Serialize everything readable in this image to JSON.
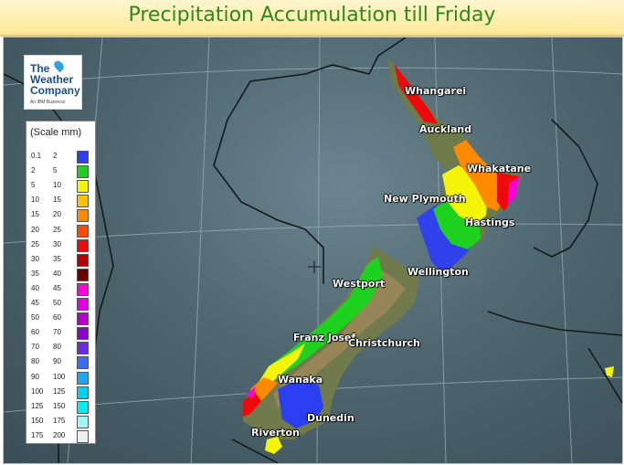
{
  "title": "Precipitation Accumulation till Friday",
  "logo": {
    "line1": "The",
    "line2": "Weather",
    "line3": "Company",
    "subtitle": "An IBM Business"
  },
  "legend": {
    "title": "(Scale mm)",
    "rows": [
      {
        "from": "0.1",
        "to": "2",
        "color": "#2b3ef2"
      },
      {
        "from": "2",
        "to": "5",
        "color": "#1fd11f"
      },
      {
        "from": "5",
        "to": "10",
        "color": "#f5f50a"
      },
      {
        "from": "10",
        "to": "15",
        "color": "#ffc000"
      },
      {
        "from": "15",
        "to": "20",
        "color": "#ff8a00"
      },
      {
        "from": "20",
        "to": "25",
        "color": "#ff4a00"
      },
      {
        "from": "25",
        "to": "30",
        "color": "#ee0a0a"
      },
      {
        "from": "30",
        "to": "35",
        "color": "#b40000"
      },
      {
        "from": "35",
        "to": "40",
        "color": "#6b0000"
      },
      {
        "from": "40",
        "to": "45",
        "color": "#ff00dc"
      },
      {
        "from": "45",
        "to": "50",
        "color": "#e600e6"
      },
      {
        "from": "50",
        "to": "60",
        "color": "#b400c8"
      },
      {
        "from": "60",
        "to": "70",
        "color": "#8c00d2"
      },
      {
        "from": "70",
        "to": "80",
        "color": "#6a2ae0"
      },
      {
        "from": "80",
        "to": "90",
        "color": "#3a6ef0"
      },
      {
        "from": "90",
        "to": "100",
        "color": "#1aa8f0"
      },
      {
        "from": "100",
        "to": "125",
        "color": "#00d2f0"
      },
      {
        "from": "125",
        "to": "150",
        "color": "#00f0f0"
      },
      {
        "from": "150",
        "to": "175",
        "color": "#a0f5f5"
      },
      {
        "from": "175",
        "to": "200",
        "color": "#f0f0f0"
      }
    ]
  },
  "cities": [
    "Whangarei",
    "Auckland",
    "Whakatane",
    "New Plymouth",
    "Hastings",
    "Wellington",
    "Westport",
    "Franz Josef",
    "Christchurch",
    "Wanaka",
    "Dunedin",
    "Riverton"
  ]
}
